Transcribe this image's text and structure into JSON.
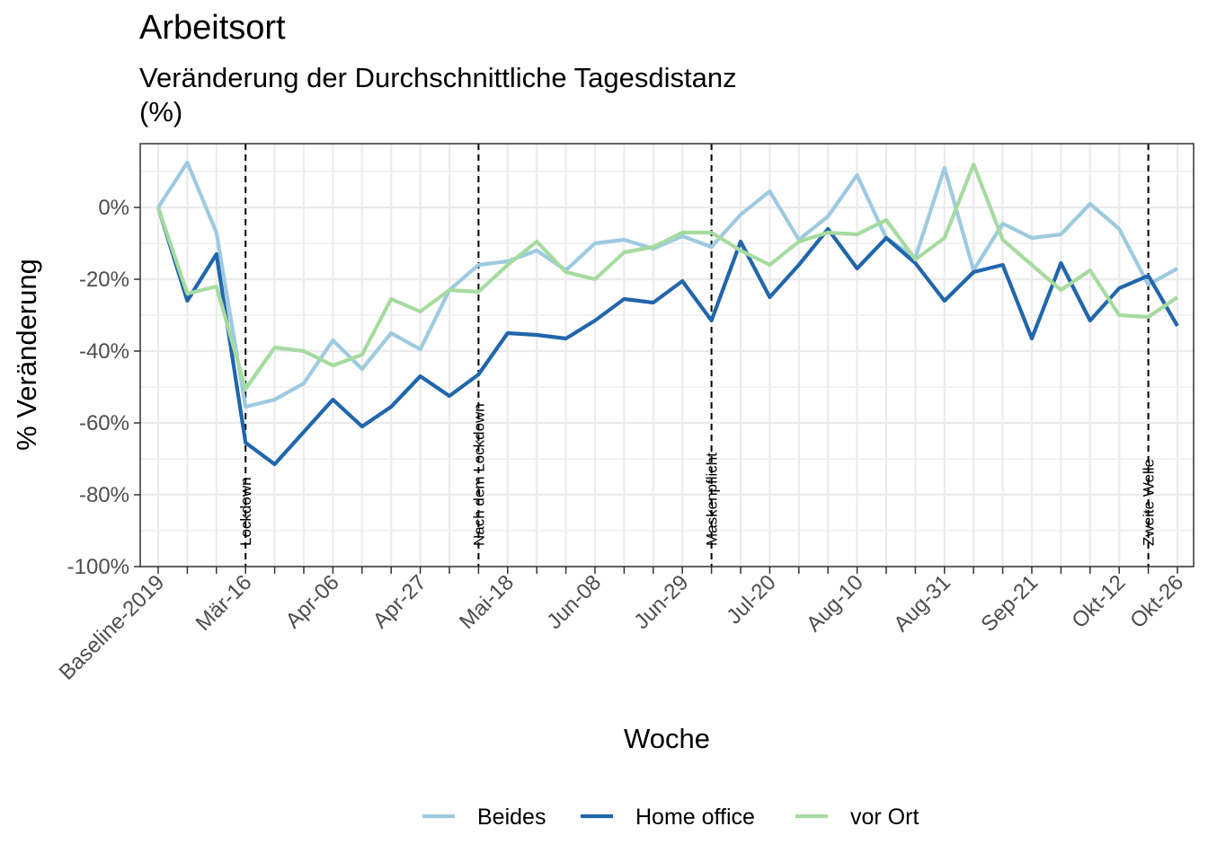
{
  "chart_data": {
    "type": "line",
    "title": "Arbeitsort",
    "subtitle": "Veränderung der Durchschnittliche Tagesdistanz (%)",
    "xlabel": "Woche",
    "ylabel": "% Veränderung",
    "x": [
      "Baseline-2019",
      "Mär-02",
      "Mär-09",
      "Mär-16",
      "Mär-23",
      "Mär-30",
      "Apr-06",
      "Apr-13",
      "Apr-20",
      "Apr-27",
      "Mai-04",
      "Mai-11",
      "Mai-18",
      "Mai-25",
      "Jun-01",
      "Jun-08",
      "Jun-15",
      "Jun-22",
      "Jun-29",
      "Jul-06",
      "Jul-13",
      "Jul-20",
      "Jul-27",
      "Aug-03",
      "Aug-10",
      "Aug-17",
      "Aug-24",
      "Aug-31",
      "Sep-07",
      "Sep-14",
      "Sep-21",
      "Sep-28",
      "Okt-05",
      "Okt-12",
      "Okt-19",
      "Okt-26"
    ],
    "x_tick_labels_shown": [
      "Baseline-2019",
      "Mär-16",
      "Apr-06",
      "Apr-27",
      "Mai-18",
      "Jun-08",
      "Jun-29",
      "Jul-20",
      "Aug-10",
      "Aug-31",
      "Sep-21",
      "Okt-12",
      "Okt-26"
    ],
    "y_ticks": [
      "-100%",
      "-80%",
      "-60%",
      "-40%",
      "-20%",
      "0%"
    ],
    "ylim": [
      -100,
      18
    ],
    "grid": true,
    "legend_position": "bottom",
    "series": [
      {
        "name": "Beides",
        "color": "#9ecae1",
        "values": [
          0,
          12.5,
          -7,
          -55.5,
          -53.5,
          -49,
          -37,
          -45,
          -35,
          -39.5,
          -23,
          -16,
          -15,
          -12,
          -17.5,
          -10,
          -9,
          -11.5,
          -8,
          -11,
          -2,
          4.5,
          -9,
          -2.5,
          9,
          -8.5,
          -14,
          11,
          -17.5,
          -4.5,
          -8.5,
          -7.5,
          1,
          -6,
          -21.5,
          -17
        ]
      },
      {
        "name": "Home office",
        "color": "#2166ac",
        "values": [
          0,
          -26,
          -13,
          -65.5,
          -71.5,
          -62.5,
          -53.5,
          -61,
          -55.5,
          -47,
          -52.5,
          -46.5,
          -35,
          -35.5,
          -36.5,
          -31.5,
          -25.5,
          -26.5,
          -20.5,
          -31.5,
          -9.5,
          -25,
          -16,
          -6,
          -17,
          -8.5,
          -15.5,
          -26,
          -18,
          -16,
          -36.5,
          -15.5,
          -31.5,
          -22.5,
          -19,
          -33
        ]
      },
      {
        "name": "vor Ort",
        "color": "#a6dba0",
        "values": [
          0,
          -24,
          -22,
          -50.5,
          -39,
          -40,
          -44,
          -41,
          -25.5,
          -29,
          -23,
          -23.5,
          -16,
          -9.5,
          -18,
          -20,
          -12.5,
          -11,
          -7,
          -7,
          -12,
          -16,
          -9.5,
          -7,
          -7.5,
          -3.5,
          -14.5,
          -8.5,
          12,
          -9,
          -16,
          -23,
          -17.5,
          -30,
          -30.5,
          -25
        ]
      }
    ],
    "events": [
      {
        "label": "Lockdown",
        "x": "Mär-16"
      },
      {
        "label": "Nach dem Lockdown",
        "x": "Mai-11"
      },
      {
        "label": "Maskenpflicht",
        "x": "Jul-06"
      },
      {
        "label": "Zweite Welle",
        "x": "Okt-19"
      }
    ]
  }
}
